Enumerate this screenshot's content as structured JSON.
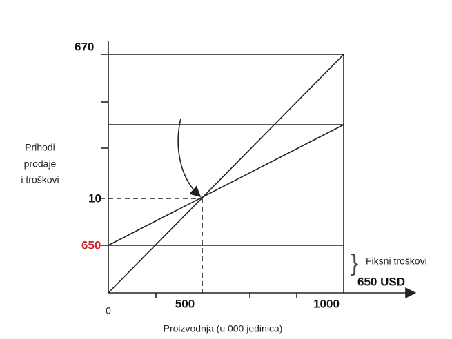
{
  "y_labels": {
    "top": "670",
    "middle": "10",
    "fixed": "650"
  },
  "y_axis_title": [
    "Prihodi",
    "prodaje",
    "i troškovi"
  ],
  "x_labels": [
    "0",
    "500",
    "1000"
  ],
  "x_axis_title": "Proizvodnja (u 000 jedinica)",
  "fixed_cost_note": {
    "label": "Fiksni troškovi",
    "amount": "650 USD"
  }
}
